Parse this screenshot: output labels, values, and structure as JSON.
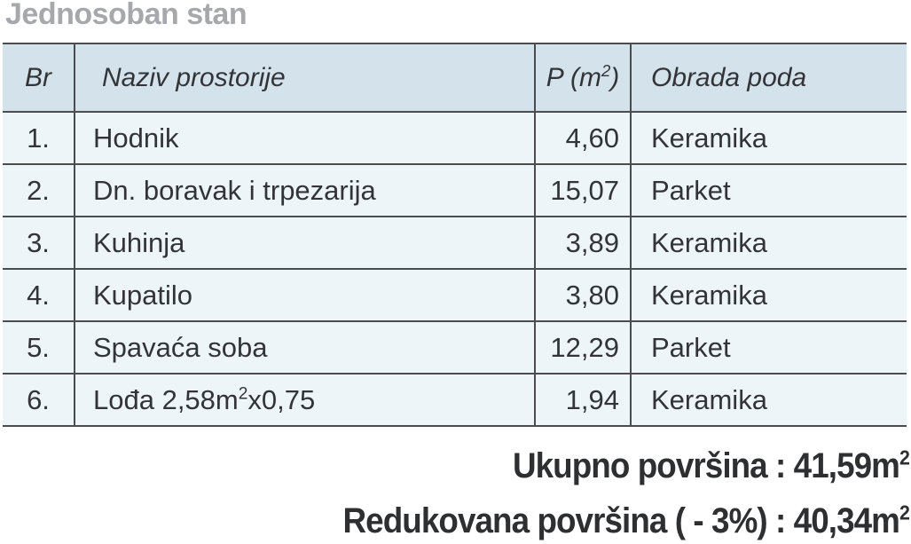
{
  "title": "Jednosoban stan",
  "table": {
    "headers": {
      "num": "Br",
      "name": "Naziv prostorije",
      "area_pre": "P (m",
      "area_sup": "2",
      "area_post": ")",
      "floor": "Obrada poda"
    },
    "rows": [
      {
        "num": "1.",
        "name": "Hodnik",
        "area": "4,60",
        "floor": "Keramika"
      },
      {
        "num": "2.",
        "name": "Dn. boravak i trpezarija",
        "area": "15,07",
        "floor": "Parket"
      },
      {
        "num": "3.",
        "name": "Kuhinja",
        "area": "3,89",
        "floor": "Keramika"
      },
      {
        "num": "4.",
        "name": "Kupatilo",
        "area": "3,80",
        "floor": "Keramika"
      },
      {
        "num": "5.",
        "name": "Spavaća soba",
        "area": "12,29",
        "floor": "Parket"
      },
      {
        "num": "6.",
        "name": "Lođa 2,58m",
        "name_sup": "2",
        "name_post": "x0,75",
        "area": "1,94",
        "floor": "Keramika"
      }
    ]
  },
  "totals": [
    {
      "text": "Ukupno površina : 41,59m",
      "sup": "2"
    },
    {
      "text": "Redukovana površina ( - 3%) : 40,34m",
      "sup": "2"
    }
  ],
  "colors": {
    "header_bg": "#d4e2eb",
    "body_bg": "#eef5f9",
    "border": "#4a4c4e",
    "title": "#a6a8ab",
    "text": "#323438",
    "totals": "#2e2f31"
  }
}
